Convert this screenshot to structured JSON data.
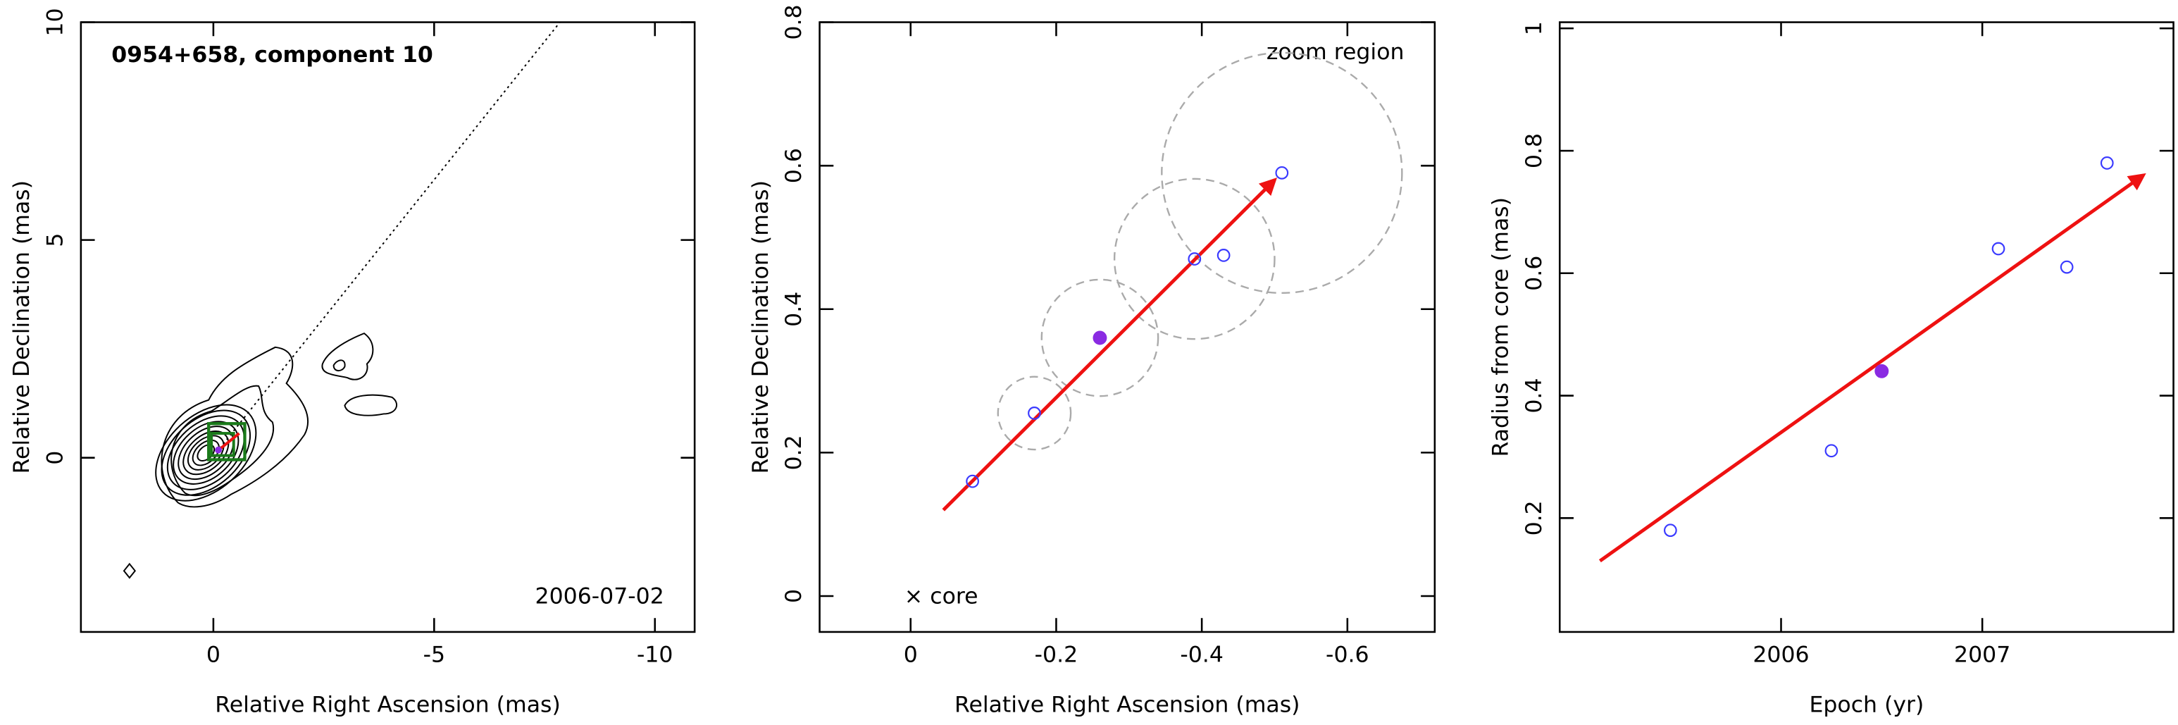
{
  "chart_data": [
    {
      "type": "contour",
      "title": "0954+658, component 10",
      "annotation": "2006-07-02",
      "xlabel": "Relative Right Ascension (mas)",
      "ylabel": "Relative Declination (mas)",
      "xlim": [
        3,
        -10.9
      ],
      "xticks": [
        0,
        -5,
        -10
      ],
      "ylim": [
        -4,
        10
      ],
      "yticks": [
        0,
        5,
        10
      ]
    },
    {
      "type": "scatter",
      "annotations": [
        "zoom region",
        "× core"
      ],
      "xlabel": "Relative Right Ascension (mas)",
      "ylabel": "Relative Declination (mas)",
      "xlim": [
        0.125,
        -0.72
      ],
      "xticks": [
        0,
        -0.2,
        -0.4,
        -0.6
      ],
      "ylim": [
        -0.05,
        0.8
      ],
      "yticks": [
        0,
        0.2,
        0.4,
        0.6,
        0.8
      ],
      "series": [
        {
          "color": "#3a3aff",
          "marker": "open",
          "x": [
            -0.085,
            -0.17,
            -0.39,
            -0.43,
            -0.51
          ],
          "y": [
            0.16,
            0.255,
            0.47,
            0.475,
            0.59
          ]
        },
        {
          "color": "#8a2be2",
          "marker": "filled",
          "x": [
            -0.26
          ],
          "y": [
            0.36
          ]
        }
      ],
      "circles": {
        "x": [
          -0.17,
          -0.26,
          -0.39,
          -0.51
        ],
        "y": [
          0.255,
          0.36,
          0.47,
          0.59
        ],
        "r": [
          0.05,
          0.08,
          0.11,
          0.165
        ]
      },
      "arrow": {
        "color": "#ee1111",
        "x": [
          -0.045,
          -0.5
        ],
        "y": [
          0.12,
          0.58
        ]
      }
    },
    {
      "type": "scatter",
      "xlabel": "Epoch (yr)",
      "ylabel": "Radius from core (mas)",
      "xlim": [
        2004.9,
        2007.95
      ],
      "xticks": [
        2006,
        2007
      ],
      "ylim": [
        0.014,
        1.01
      ],
      "yticks": [
        0.2,
        0.4,
        0.6,
        0.8,
        1
      ],
      "series": [
        {
          "color": "#3a3aff",
          "marker": "open",
          "x": [
            2005.45,
            2006.25,
            2007.08,
            2007.42,
            2007.62
          ],
          "y": [
            0.18,
            0.31,
            0.64,
            0.61,
            0.78
          ]
        },
        {
          "color": "#8a2be2",
          "marker": "filled",
          "x": [
            2006.5
          ],
          "y": [
            0.44
          ]
        }
      ],
      "arrow": {
        "color": "#ee1111",
        "x": [
          2005.1,
          2007.8
        ],
        "y": [
          0.13,
          0.76
        ]
      }
    }
  ]
}
